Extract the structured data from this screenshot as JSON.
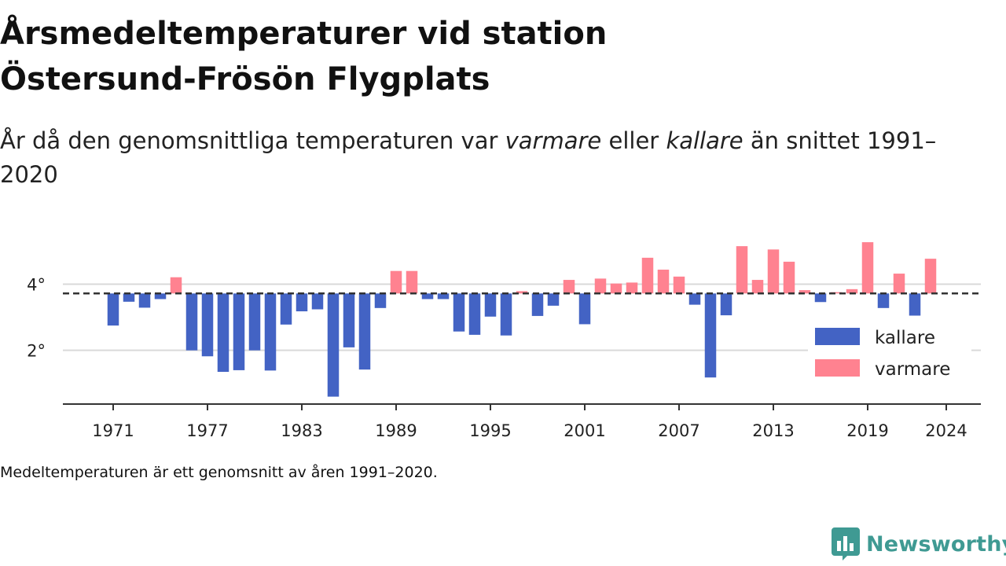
{
  "title_line1": "Årsmedeltemperaturer vid station",
  "title_line2": "Östersund-Frösön Flygplats",
  "subtitle": {
    "prefix": "År då den genomsnittliga temperaturen var ",
    "warmer": "varmare",
    "middle": " eller ",
    "colder": "kallare",
    "suffix": " än snittet 1991–2020"
  },
  "footnote": "Medeltemperaturen är ett genomsnitt av åren 1991–2020.",
  "brand": "Newsworthy",
  "colors": {
    "cold": "#4363c4",
    "warm": "#ff8290",
    "baseline": "#333333",
    "grid": "#d9d9d9",
    "axis": "#333333",
    "brand": "#3f9a93"
  },
  "icons": {
    "logo": "chart-bubble-logo-icon"
  },
  "chart_data": {
    "type": "bar",
    "baseline": 3.72,
    "baseline_style": "dashed",
    "ylim": [
      0.4,
      5.7
    ],
    "yticks": [
      2,
      4
    ],
    "ytick_labels": [
      "2°",
      "4°"
    ],
    "xlim": [
      1967.8,
      2026.2
    ],
    "xticks": [
      1971,
      1977,
      1983,
      1989,
      1995,
      2001,
      2007,
      2013,
      2019,
      2024
    ],
    "grid": true,
    "legend_position": "right",
    "legend": [
      {
        "key": "cold",
        "label": "kallare"
      },
      {
        "key": "warm",
        "label": "varmare"
      }
    ],
    "years": [
      1970,
      1971,
      1972,
      1973,
      1974,
      1975,
      1976,
      1977,
      1978,
      1979,
      1980,
      1981,
      1982,
      1983,
      1984,
      1985,
      1986,
      1987,
      1988,
      1989,
      1990,
      1991,
      1992,
      1993,
      1994,
      1995,
      1996,
      1997,
      1998,
      1999,
      2000,
      2001,
      2002,
      2003,
      2004,
      2005,
      2006,
      2007,
      2008,
      2009,
      2010,
      2011,
      2012,
      2013,
      2014,
      2015,
      2016,
      2017,
      2018,
      2019,
      2020,
      2021,
      2022,
      2023,
      2024
    ],
    "values": [
      null,
      2.75,
      3.47,
      3.29,
      3.55,
      4.21,
      2.0,
      1.82,
      1.35,
      1.4,
      2.0,
      1.39,
      2.78,
      3.18,
      3.24,
      0.6,
      2.09,
      1.42,
      3.28,
      4.4,
      4.4,
      3.55,
      3.55,
      2.57,
      2.47,
      3.02,
      2.45,
      3.79,
      3.04,
      3.35,
      4.13,
      2.79,
      4.17,
      4.02,
      4.05,
      4.8,
      4.44,
      4.23,
      3.38,
      1.18,
      3.06,
      5.15,
      4.13,
      5.05,
      4.68,
      3.82,
      3.46,
      3.76,
      3.85,
      5.27,
      3.28,
      4.32,
      3.05,
      4.77,
      null
    ]
  }
}
